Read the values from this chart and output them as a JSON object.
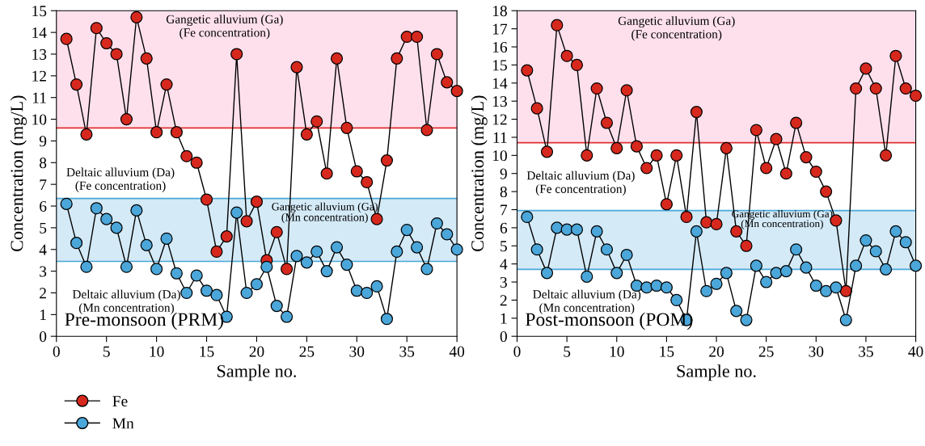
{
  "chart_data": [
    {
      "type": "line",
      "title": "Pre-monsoon (PRM)",
      "xlabel": "Sample no.",
      "ylabel": "Concentration (mg/L)",
      "x": [
        1,
        2,
        3,
        4,
        5,
        6,
        7,
        8,
        9,
        10,
        11,
        12,
        13,
        14,
        15,
        16,
        17,
        18,
        19,
        20,
        21,
        22,
        23,
        24,
        25,
        26,
        27,
        28,
        29,
        30,
        31,
        32,
        33,
        34,
        35,
        36,
        37,
        38,
        39,
        40
      ],
      "series": [
        {
          "name": "Fe",
          "color": "#d7281e",
          "values": [
            13.7,
            11.6,
            9.3,
            14.2,
            13.5,
            13.0,
            10.0,
            14.7,
            12.8,
            9.4,
            11.6,
            9.4,
            8.3,
            8.0,
            6.3,
            3.9,
            4.6,
            13.0,
            5.3,
            6.2,
            3.5,
            4.8,
            3.1,
            12.4,
            9.3,
            9.9,
            7.5,
            12.8,
            9.6,
            7.6,
            7.1,
            5.4,
            8.1,
            12.8,
            13.8,
            13.8,
            9.5,
            13.0,
            11.7,
            11.3
          ]
        },
        {
          "name": "Mn",
          "color": "#4ba6d9",
          "values": [
            6.1,
            4.3,
            3.2,
            5.9,
            5.4,
            5.0,
            3.2,
            5.8,
            4.2,
            3.1,
            4.5,
            2.9,
            2.0,
            2.8,
            2.1,
            1.9,
            0.9,
            5.7,
            2.0,
            2.4,
            3.2,
            1.4,
            0.9,
            3.7,
            3.4,
            3.9,
            3.0,
            4.1,
            3.3,
            2.1,
            2.0,
            2.3,
            0.8,
            3.9,
            4.9,
            4.1,
            3.1,
            5.2,
            4.7,
            4.0
          ]
        }
      ],
      "bands": [
        {
          "axis": "y",
          "from": 9.6,
          "to": 15,
          "color": "#fde0ec"
        },
        {
          "axis": "y",
          "from": 3.45,
          "to": 6.35,
          "color": "#d4eaf7"
        }
      ],
      "ref_lines": [
        {
          "axis": "y",
          "value": 9.6,
          "color": "#e03030"
        },
        {
          "axis": "y",
          "value": 3.45,
          "color": "#4aa8d8"
        },
        {
          "axis": "y",
          "value": 6.35,
          "color": "#4aa8d8"
        }
      ],
      "annotations": [
        "Gangetic alluvium (Ga)\n(Fe concentration)",
        "Deltaic alluvium (Da)\n(Fe concentration)",
        "Gangetic alluvium (Ga)\n(Mn concentration)",
        "Deltaic alluvium (Da)\n(Mn concentration)"
      ],
      "xlim": [
        0,
        40
      ],
      "xticks": [
        0,
        5,
        10,
        15,
        20,
        25,
        30,
        35,
        40
      ],
      "ylim": [
        0,
        15
      ],
      "yticks": [
        0,
        1,
        2,
        3,
        4,
        5,
        6,
        7,
        8,
        9,
        10,
        11,
        12,
        13,
        14,
        15
      ],
      "marker": "circle",
      "line_style": "solid",
      "legend": "bottom left"
    },
    {
      "type": "line",
      "title": "Post-monsoon (POM)",
      "xlabel": "Sample no.",
      "ylabel": "Concentration (mg/L)",
      "x": [
        1,
        2,
        3,
        4,
        5,
        6,
        7,
        8,
        9,
        10,
        11,
        12,
        13,
        14,
        15,
        16,
        17,
        18,
        19,
        20,
        21,
        22,
        23,
        24,
        25,
        26,
        27,
        28,
        29,
        30,
        31,
        32,
        33,
        34,
        35,
        36,
        37,
        38,
        39,
        40
      ],
      "series": [
        {
          "color": "#d7281e",
          "values": [
            14.7,
            12.6,
            10.2,
            17.2,
            15.5,
            15.0,
            10.0,
            13.7,
            11.8,
            10.4,
            13.6,
            10.5,
            9.3,
            10.0,
            7.3,
            10.0,
            6.6,
            12.4,
            6.3,
            6.2,
            10.4,
            5.8,
            5.0,
            11.4,
            9.3,
            10.9,
            9.0,
            11.8,
            9.9,
            9.1,
            8.0,
            6.4,
            2.5,
            13.7,
            14.8,
            13.7,
            10.0,
            15.5,
            13.7,
            13.3
          ]
        },
        {
          "color": "#4ba6d9",
          "values": [
            6.6,
            4.8,
            3.5,
            6.0,
            5.9,
            5.9,
            3.3,
            5.8,
            4.8,
            3.5,
            4.5,
            2.8,
            2.7,
            2.8,
            2.7,
            2.0,
            0.9,
            5.8,
            2.5,
            2.9,
            3.5,
            1.4,
            0.9,
            3.9,
            3.0,
            3.5,
            3.6,
            4.8,
            3.8,
            2.8,
            2.5,
            2.7,
            0.9,
            3.9,
            5.3,
            4.7,
            3.7,
            5.8,
            5.2,
            3.9
          ]
        }
      ],
      "bands": [
        {
          "axis": "y",
          "from": 10.7,
          "to": 18,
          "color": "#fde0ec"
        },
        {
          "axis": "y",
          "from": 3.7,
          "to": 6.95,
          "color": "#d4eaf7"
        }
      ],
      "ref_lines": [
        {
          "axis": "y",
          "value": 10.7,
          "color": "#e03030"
        },
        {
          "axis": "y",
          "value": 3.7,
          "color": "#4aa8d8"
        },
        {
          "axis": "y",
          "value": 6.95,
          "color": "#4aa8d8"
        }
      ],
      "annotations": [
        "Gangetic alluvium (Ga)\n(Fe concentration)",
        "Deltaic alluvium (Da)\n(Fe concentration)",
        "Gangetic alluvium (Ga)\n(Mn concentration)",
        "Deltaic alluvium (Da)\n(Mn concentration)"
      ],
      "xlim": [
        0,
        40
      ],
      "xticks": [
        0,
        5,
        10,
        15,
        20,
        25,
        30,
        35,
        40
      ],
      "ylim": [
        0,
        18
      ],
      "yticks": [
        0,
        1,
        2,
        3,
        4,
        5,
        6,
        7,
        8,
        9,
        10,
        11,
        12,
        13,
        14,
        15,
        16,
        17,
        18
      ],
      "marker": "circle",
      "line_style": "solid"
    }
  ]
}
